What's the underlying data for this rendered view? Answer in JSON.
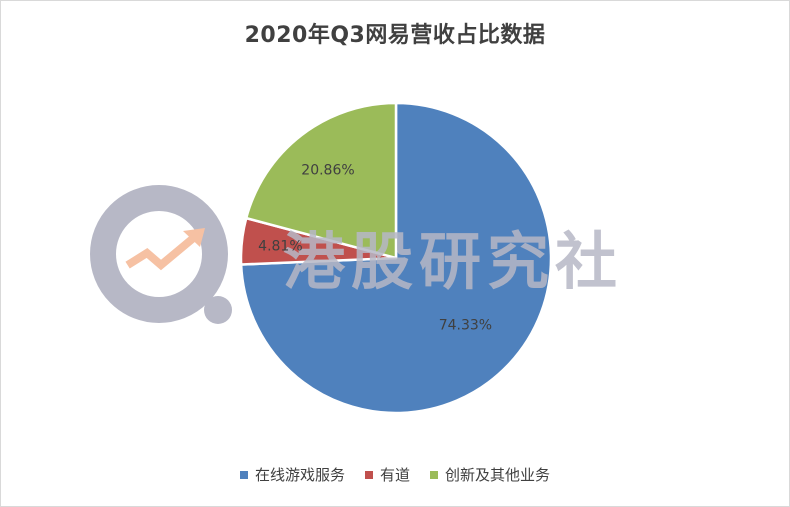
{
  "chart_data": {
    "type": "pie",
    "title": "2020年Q3网易营收占比数据",
    "labels": [
      "在线游戏服务",
      "有道",
      "创新及其他业务"
    ],
    "values": [
      74.33,
      4.81,
      20.86
    ],
    "value_labels": [
      "74.33%",
      "4.81%",
      "20.86%"
    ],
    "colors": [
      "#4f81bd",
      "#c0504d",
      "#9bbb59"
    ],
    "start_angle_deg": 0,
    "direction": "clockwise",
    "legend_position": "bottom"
  },
  "watermark": {
    "text": "港股研究社",
    "text_color": "#b7b8c6",
    "logo_color": "#b7b8c6",
    "arrow_color": "#f6c1a3"
  }
}
